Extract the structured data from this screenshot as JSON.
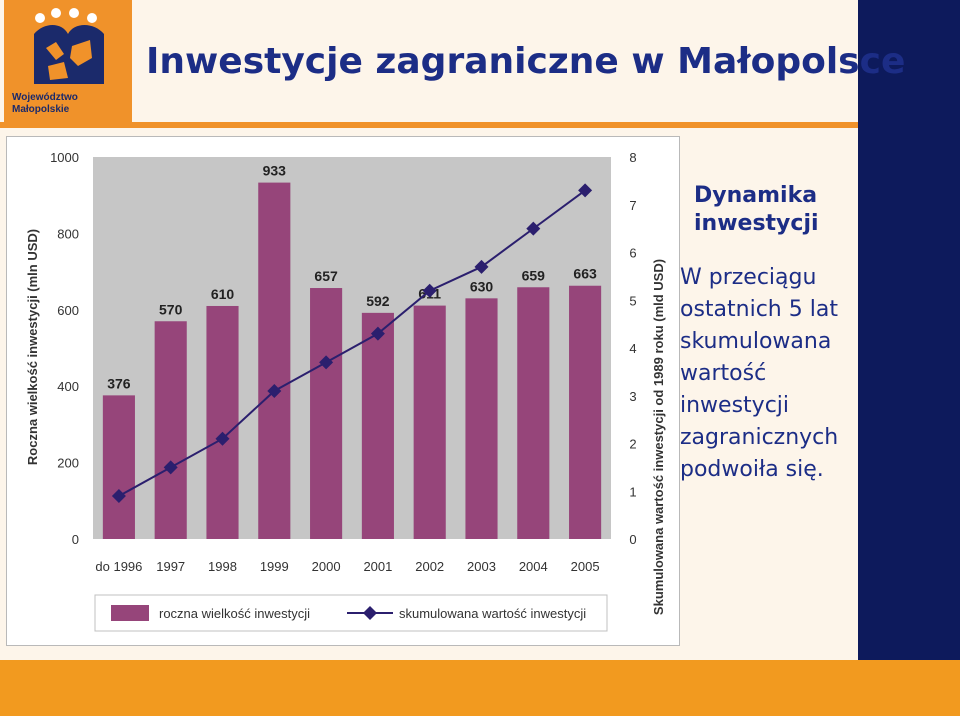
{
  "header": {
    "title": "Inwestycje zagraniczne w Małopolsce",
    "logo_lines": [
      "Województwo",
      "Małopolskie"
    ]
  },
  "side_panel": {
    "heading": "Dynamika inwestycji",
    "text": "W przeciągu ostatnich 5 lat skumulowana wartość inwestycji zagranicznych podwoiła się."
  },
  "colors": {
    "bar": "#96457a",
    "line": "#2b1f6e",
    "accent_orange": "#f0922a",
    "navy": "#0d1a5c",
    "title": "#1c2d86"
  },
  "chart_data": {
    "type": "bar",
    "categories": [
      "do 1996",
      "1997",
      "1998",
      "1999",
      "2000",
      "2001",
      "2002",
      "2003",
      "2004",
      "2005"
    ],
    "series": [
      {
        "name": "roczna wielkość inwestycji",
        "type": "bar",
        "axis": "left",
        "values": [
          376,
          570,
          610,
          933,
          657,
          592,
          611,
          630,
          659,
          663
        ]
      },
      {
        "name": "skumulowana wartość inwestycji",
        "type": "line",
        "axis": "right",
        "values": [
          0.9,
          1.5,
          2.1,
          3.1,
          3.7,
          4.3,
          5.2,
          5.7,
          6.5,
          7.3
        ]
      }
    ],
    "ylabel": "Roczna wielkość inwestycji (mln USD)",
    "y2label": "Skumulowana wartość inwestycji od 1989 roku (mld USD)",
    "ylim": [
      0,
      1000
    ],
    "y2lim": [
      0,
      8
    ],
    "yticks": [
      0,
      200,
      400,
      600,
      800,
      1000
    ],
    "y2ticks": [
      0,
      1,
      2,
      3,
      4,
      5,
      6,
      7,
      8
    ],
    "grid": false,
    "legend": "bottom"
  }
}
